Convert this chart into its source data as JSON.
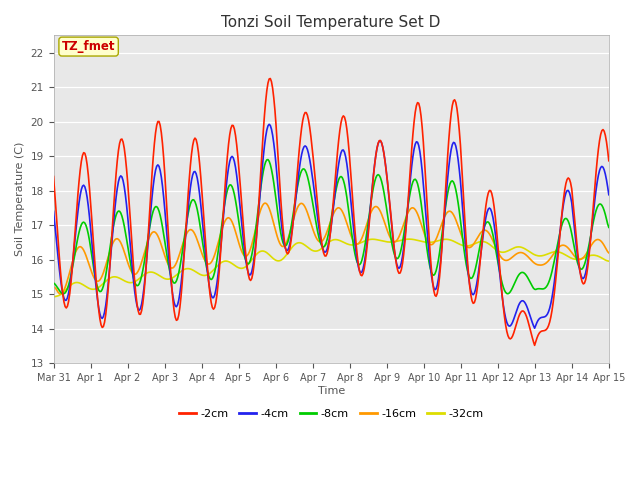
{
  "title": "Tonzi Soil Temperature Set D",
  "xlabel": "Time",
  "ylabel": "Soil Temperature (C)",
  "ylim": [
    13.0,
    22.5
  ],
  "yticks": [
    13.0,
    14.0,
    15.0,
    16.0,
    17.0,
    18.0,
    19.0,
    20.0,
    21.0,
    22.0
  ],
  "xtick_labels": [
    "Mar 31",
    "Apr 1",
    "Apr 2",
    "Apr 3",
    "Apr 4",
    "Apr 5",
    "Apr 6",
    "Apr 7",
    "Apr 8",
    "Apr 9",
    "Apr 10",
    "Apr 11",
    "Apr 12",
    "Apr 13",
    "Apr 14",
    "Apr 15"
  ],
  "series_colors": [
    "#ff2200",
    "#2222ee",
    "#00cc00",
    "#ff9900",
    "#dddd00"
  ],
  "series_labels": [
    "-2cm",
    "-4cm",
    "-8cm",
    "-16cm",
    "-32cm"
  ],
  "annotation_text": "TZ_fmet",
  "annotation_color": "#cc0000",
  "annotation_bg": "#ffffcc",
  "linewidth": 1.2,
  "n_points": 480,
  "days": 15
}
